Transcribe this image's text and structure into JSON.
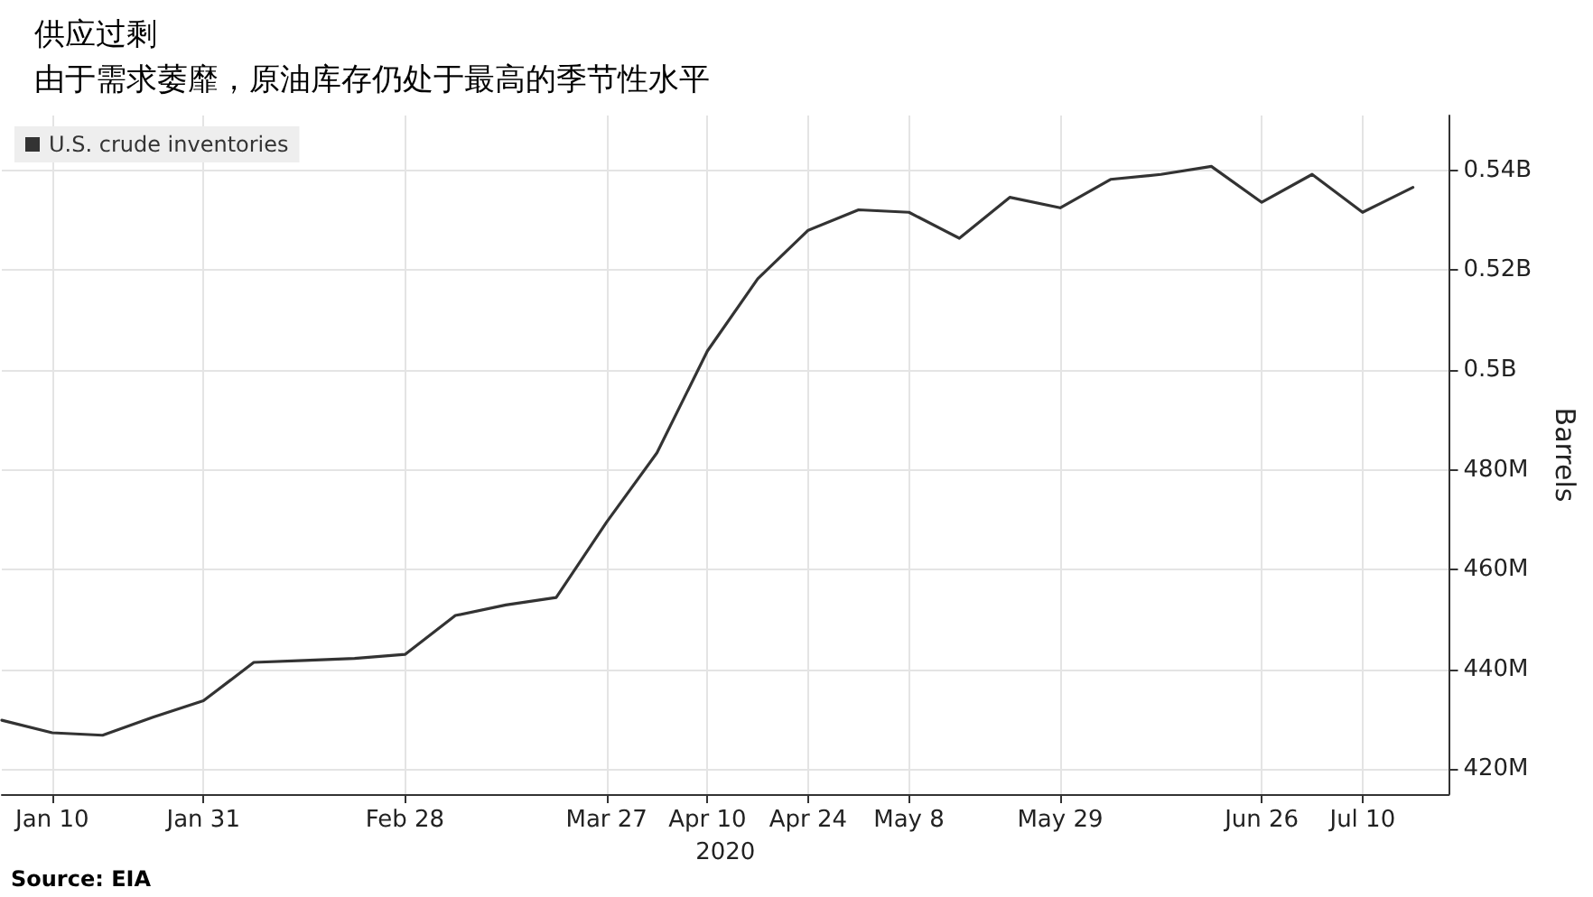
{
  "chart_data": {
    "type": "line",
    "title": "供应过剩",
    "subtitle": "由于需求萎靡，原油库存仍处于最高的季节性水平",
    "xlabel": "2020",
    "ylabel": "Barrels",
    "x": [
      "2020-01-03",
      "2020-01-10",
      "2020-01-17",
      "2020-01-24",
      "2020-01-31",
      "2020-02-07",
      "2020-02-14",
      "2020-02-21",
      "2020-02-28",
      "2020-03-06",
      "2020-03-13",
      "2020-03-20",
      "2020-03-27",
      "2020-04-03",
      "2020-04-10",
      "2020-04-17",
      "2020-04-24",
      "2020-05-01",
      "2020-05-08",
      "2020-05-15",
      "2020-05-22",
      "2020-05-29",
      "2020-06-05",
      "2020-06-12",
      "2020-06-19",
      "2020-06-26",
      "2020-07-03",
      "2020-07-10",
      "2020-07-17"
    ],
    "series": [
      {
        "name": "U.S. crude inventories",
        "color": "#333333",
        "values": [
          429800000,
          427300000,
          426800000,
          430400000,
          433700000,
          441400000,
          441800000,
          442200000,
          443000000,
          450800000,
          452900000,
          454400000,
          469500000,
          483400000,
          503800000,
          518300000,
          528000000,
          532100000,
          531600000,
          526400000,
          534600000,
          532500000,
          538200000,
          539200000,
          540800000,
          533600000,
          539200000,
          531600000,
          536600000
        ]
      }
    ],
    "xlim": [
      "2020-01-03",
      "2020-07-22"
    ],
    "ylim": [
      415000000,
      551000000
    ],
    "xticks": [
      {
        "value": "2020-01-10",
        "label": "Jan 10"
      },
      {
        "value": "2020-01-31",
        "label": "Jan 31"
      },
      {
        "value": "2020-02-28",
        "label": "Feb 28"
      },
      {
        "value": "2020-03-27",
        "label": "Mar 27"
      },
      {
        "value": "2020-04-10",
        "label": "Apr 10"
      },
      {
        "value": "2020-04-24",
        "label": "Apr 24"
      },
      {
        "value": "2020-05-08",
        "label": "May 8"
      },
      {
        "value": "2020-05-29",
        "label": "May 29"
      },
      {
        "value": "2020-06-26",
        "label": "Jun 26"
      },
      {
        "value": "2020-07-10",
        "label": "Jul 10"
      }
    ],
    "yticks": [
      {
        "value": 420000000,
        "label": "420M"
      },
      {
        "value": 440000000,
        "label": "440M"
      },
      {
        "value": 460000000,
        "label": "460M"
      },
      {
        "value": 480000000,
        "label": "480M"
      },
      {
        "value": 500000000,
        "label": "0.5B"
      },
      {
        "value": 520000000,
        "label": "0.52B"
      },
      {
        "value": 540000000,
        "label": "0.54B"
      }
    ],
    "grid": true,
    "legend": "top left",
    "marker": "none",
    "line_style": "solid",
    "annotations": [
      "Source: EIA"
    ]
  }
}
